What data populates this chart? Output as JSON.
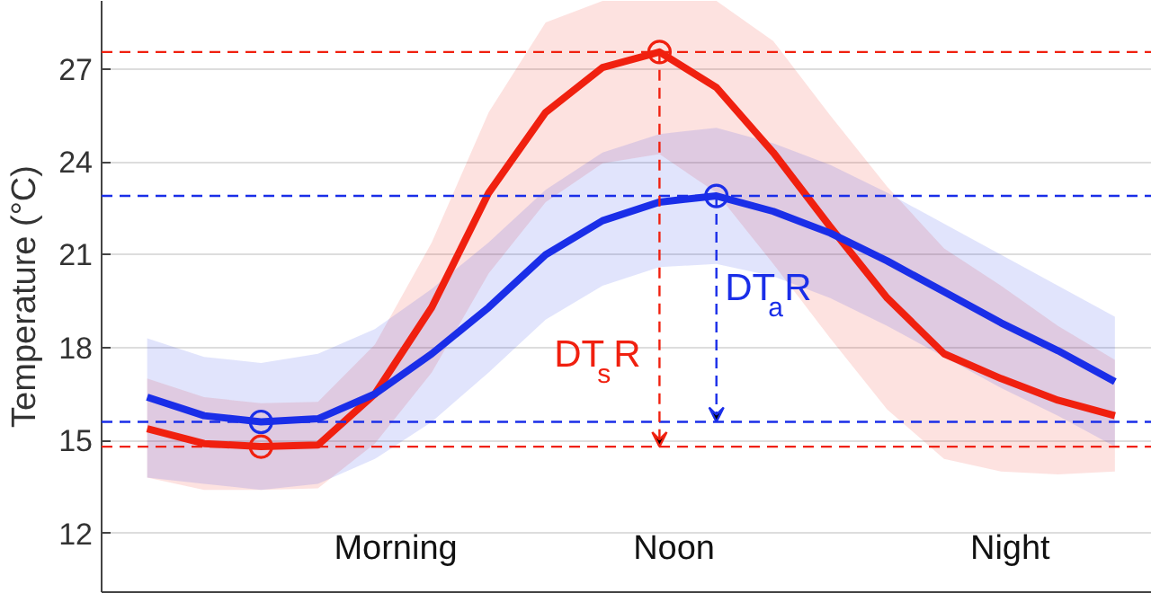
{
  "chart_data": {
    "type": "line",
    "ylabel": "Temperature (°C)",
    "categories": [
      null,
      null,
      null,
      null,
      null,
      null,
      null,
      null,
      null,
      null,
      null,
      null,
      null,
      null,
      null,
      null,
      null,
      null
    ],
    "ylim": [
      10.1,
      29.2
    ],
    "yticks": [
      12,
      15,
      18,
      21,
      24,
      27
    ],
    "tick_labels": "y",
    "grid": "y",
    "line_style": "solid",
    "series": [
      {
        "color": "#f0200f",
        "values": [
          15.38,
          14.9,
          14.8,
          14.85,
          16.5,
          19.3,
          23.0,
          25.6,
          27.05,
          27.55,
          26.4,
          24.3,
          21.9,
          19.6,
          17.8,
          17.0,
          16.3,
          15.8
        ],
        "upper": [
          17.0,
          16.4,
          16.2,
          16.25,
          18.1,
          21.4,
          25.6,
          28.5,
          29.2,
          29.2,
          29.2,
          27.9,
          25.5,
          23.2,
          21.2,
          20.0,
          18.7,
          17.6
        ],
        "lower": [
          13.8,
          13.4,
          13.4,
          13.45,
          14.9,
          17.2,
          20.4,
          22.7,
          23.95,
          24.25,
          23.0,
          20.7,
          18.3,
          16.0,
          14.4,
          14.0,
          13.9,
          14.0
        ]
      },
      {
        "color": "#1a2ee8",
        "values": [
          16.4,
          15.8,
          15.6,
          15.7,
          16.5,
          17.8,
          19.3,
          21.0,
          22.1,
          22.7,
          22.9,
          22.4,
          21.7,
          20.8,
          19.8,
          18.8,
          17.9,
          16.9
        ],
        "upper": [
          18.3,
          17.7,
          17.5,
          17.8,
          18.6,
          19.9,
          21.4,
          23.1,
          24.3,
          24.9,
          25.1,
          24.6,
          23.9,
          23.0,
          22.0,
          21.0,
          20.0,
          19.0
        ],
        "lower": [
          13.8,
          13.6,
          13.4,
          13.6,
          14.4,
          15.6,
          17.2,
          18.9,
          20.0,
          20.6,
          20.7,
          20.3,
          19.6,
          18.7,
          17.7,
          16.7,
          15.8,
          14.8
        ]
      }
    ],
    "ref_lines": [
      {
        "axis": "y",
        "value": 27.55,
        "color": "#f0200f",
        "line_style": "dashed"
      },
      {
        "axis": "y",
        "value": 14.8,
        "color": "#f0200f",
        "line_style": "dashed"
      },
      {
        "axis": "y",
        "value": 22.9,
        "color": "#1a2ee8",
        "line_style": "dashed"
      },
      {
        "axis": "y",
        "value": 15.6,
        "color": "#1a2ee8",
        "line_style": "dashed"
      }
    ],
    "annotations": [
      "DT$_{s}$R",
      "DT$_{a}$R",
      "Morning",
      "Noon",
      "Night"
    ]
  }
}
